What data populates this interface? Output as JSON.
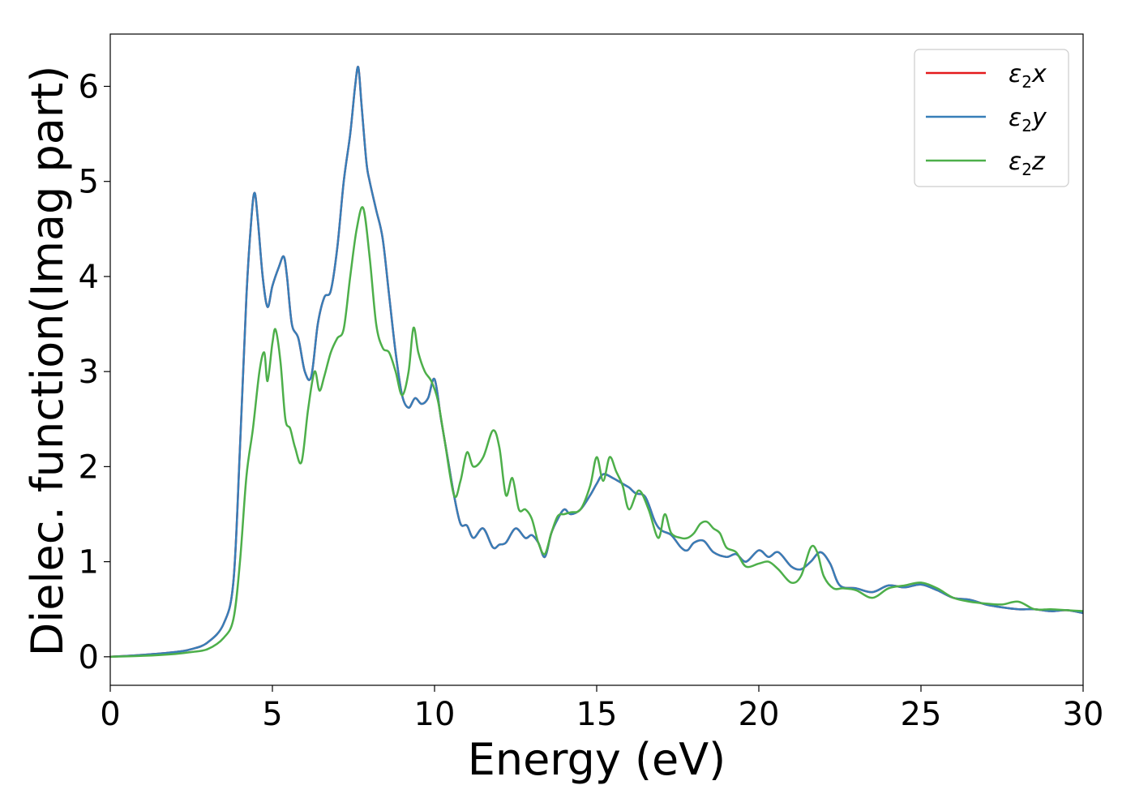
{
  "chart_data": {
    "type": "line",
    "title": "",
    "xlabel": "Energy (eV)",
    "ylabel": "Dielec. function(Imag part)",
    "xlim": [
      0,
      30
    ],
    "ylim": [
      -0.3,
      6.55
    ],
    "xticks": [
      0,
      5,
      10,
      15,
      20,
      25,
      30
    ],
    "yticks": [
      0,
      1,
      2,
      3,
      4,
      5,
      6
    ],
    "grid": false,
    "legend_position": "top-right",
    "series": [
      {
        "name": "ε2x",
        "name_main": "ε",
        "name_sub": "2",
        "name_tail": "x",
        "color": "#e41a1c",
        "x": [
          0,
          1,
          2,
          2.5,
          3,
          3.5,
          3.8,
          4.0,
          4.2,
          4.35,
          4.45,
          4.55,
          4.7,
          4.85,
          5.0,
          5.2,
          5.35,
          5.45,
          5.6,
          5.8,
          6.0,
          6.2,
          6.4,
          6.6,
          6.8,
          7.0,
          7.2,
          7.4,
          7.55,
          7.65,
          7.75,
          7.9,
          8.0,
          8.2,
          8.4,
          8.6,
          8.8,
          9.0,
          9.2,
          9.4,
          9.6,
          9.8,
          10.0,
          10.2,
          10.4,
          10.6,
          10.8,
          11.0,
          11.2,
          11.5,
          11.8,
          12.0,
          12.2,
          12.5,
          12.8,
          13.0,
          13.2,
          13.4,
          13.6,
          13.8,
          14.0,
          14.2,
          14.5,
          14.8,
          15.0,
          15.2,
          15.5,
          15.8,
          16.0,
          16.2,
          16.5,
          16.8,
          17.0,
          17.3,
          17.6,
          17.8,
          18.0,
          18.3,
          18.6,
          19.0,
          19.3,
          19.6,
          20.0,
          20.3,
          20.6,
          21.0,
          21.3,
          21.6,
          21.9,
          22.2,
          22.5,
          23.0,
          23.5,
          24.0,
          24.5,
          25.0,
          25.5,
          26.0,
          26.5,
          27.0,
          27.5,
          28.0,
          28.5,
          29.0,
          29.5,
          30.0
        ],
        "y": [
          0.0,
          0.02,
          0.05,
          0.08,
          0.15,
          0.35,
          0.8,
          2.2,
          3.8,
          4.6,
          4.88,
          4.6,
          4.0,
          3.68,
          3.9,
          4.1,
          4.21,
          4.0,
          3.5,
          3.35,
          3.0,
          2.95,
          3.5,
          3.78,
          3.85,
          4.3,
          5.0,
          5.5,
          6.0,
          6.2,
          5.8,
          5.2,
          5.0,
          4.7,
          4.4,
          3.8,
          3.2,
          2.75,
          2.62,
          2.72,
          2.66,
          2.72,
          2.92,
          2.5,
          2.1,
          1.7,
          1.4,
          1.38,
          1.25,
          1.35,
          1.15,
          1.18,
          1.2,
          1.35,
          1.25,
          1.28,
          1.2,
          1.05,
          1.3,
          1.45,
          1.55,
          1.5,
          1.55,
          1.7,
          1.82,
          1.92,
          1.88,
          1.82,
          1.78,
          1.72,
          1.68,
          1.42,
          1.33,
          1.28,
          1.15,
          1.12,
          1.2,
          1.22,
          1.1,
          1.05,
          1.08,
          1.0,
          1.12,
          1.05,
          1.1,
          0.95,
          0.92,
          1.0,
          1.1,
          0.98,
          0.75,
          0.72,
          0.68,
          0.75,
          0.73,
          0.76,
          0.7,
          0.62,
          0.6,
          0.55,
          0.52,
          0.5,
          0.5,
          0.48,
          0.49,
          0.46
        ]
      },
      {
        "name": "ε2y",
        "name_main": "ε",
        "name_sub": "2",
        "name_tail": "y",
        "color": "#377eb8",
        "x": [
          0,
          1,
          2,
          2.5,
          3,
          3.5,
          3.8,
          4.0,
          4.2,
          4.35,
          4.45,
          4.55,
          4.7,
          4.85,
          5.0,
          5.2,
          5.35,
          5.45,
          5.6,
          5.8,
          6.0,
          6.2,
          6.4,
          6.6,
          6.8,
          7.0,
          7.2,
          7.4,
          7.55,
          7.65,
          7.75,
          7.9,
          8.0,
          8.2,
          8.4,
          8.6,
          8.8,
          9.0,
          9.2,
          9.4,
          9.6,
          9.8,
          10.0,
          10.2,
          10.4,
          10.6,
          10.8,
          11.0,
          11.2,
          11.5,
          11.8,
          12.0,
          12.2,
          12.5,
          12.8,
          13.0,
          13.2,
          13.4,
          13.6,
          13.8,
          14.0,
          14.2,
          14.5,
          14.8,
          15.0,
          15.2,
          15.5,
          15.8,
          16.0,
          16.2,
          16.5,
          16.8,
          17.0,
          17.3,
          17.6,
          17.8,
          18.0,
          18.3,
          18.6,
          19.0,
          19.3,
          19.6,
          20.0,
          20.3,
          20.6,
          21.0,
          21.3,
          21.6,
          21.9,
          22.2,
          22.5,
          23.0,
          23.5,
          24.0,
          24.5,
          25.0,
          25.5,
          26.0,
          26.5,
          27.0,
          27.5,
          28.0,
          28.5,
          29.0,
          29.5,
          30.0
        ],
        "y": [
          0.0,
          0.02,
          0.05,
          0.08,
          0.15,
          0.35,
          0.8,
          2.2,
          3.8,
          4.6,
          4.88,
          4.6,
          4.0,
          3.68,
          3.9,
          4.1,
          4.21,
          4.0,
          3.5,
          3.35,
          3.0,
          2.95,
          3.5,
          3.78,
          3.85,
          4.3,
          5.0,
          5.5,
          6.0,
          6.2,
          5.8,
          5.2,
          5.0,
          4.7,
          4.4,
          3.8,
          3.2,
          2.75,
          2.62,
          2.72,
          2.66,
          2.72,
          2.92,
          2.5,
          2.1,
          1.7,
          1.4,
          1.38,
          1.25,
          1.35,
          1.15,
          1.18,
          1.2,
          1.35,
          1.25,
          1.28,
          1.2,
          1.05,
          1.3,
          1.45,
          1.55,
          1.5,
          1.55,
          1.7,
          1.82,
          1.92,
          1.88,
          1.82,
          1.78,
          1.72,
          1.68,
          1.42,
          1.33,
          1.28,
          1.15,
          1.12,
          1.2,
          1.22,
          1.1,
          1.05,
          1.08,
          1.0,
          1.12,
          1.05,
          1.1,
          0.95,
          0.92,
          1.0,
          1.1,
          0.98,
          0.75,
          0.72,
          0.68,
          0.75,
          0.73,
          0.76,
          0.7,
          0.62,
          0.6,
          0.55,
          0.52,
          0.5,
          0.5,
          0.48,
          0.49,
          0.46
        ]
      },
      {
        "name": "ε2z",
        "name_main": "ε",
        "name_sub": "2",
        "name_tail": "z",
        "color": "#4daf4a",
        "x": [
          0,
          1,
          2,
          2.5,
          3,
          3.5,
          3.8,
          4.0,
          4.2,
          4.4,
          4.6,
          4.75,
          4.85,
          5.0,
          5.1,
          5.25,
          5.4,
          5.55,
          5.7,
          5.9,
          6.1,
          6.3,
          6.45,
          6.6,
          6.8,
          7.0,
          7.2,
          7.4,
          7.6,
          7.8,
          8.0,
          8.2,
          8.4,
          8.6,
          8.8,
          9.0,
          9.2,
          9.35,
          9.5,
          9.7,
          9.9,
          10.1,
          10.3,
          10.6,
          10.8,
          11.0,
          11.2,
          11.5,
          11.8,
          12.0,
          12.2,
          12.4,
          12.6,
          12.8,
          13.0,
          13.2,
          13.4,
          13.6,
          13.8,
          14.0,
          14.2,
          14.5,
          14.8,
          15.0,
          15.2,
          15.4,
          15.6,
          15.8,
          16.0,
          16.3,
          16.6,
          16.9,
          17.1,
          17.3,
          17.6,
          17.8,
          18.0,
          18.2,
          18.4,
          18.6,
          18.8,
          19.0,
          19.3,
          19.6,
          20.0,
          20.3,
          20.6,
          21.0,
          21.3,
          21.6,
          21.8,
          22.0,
          22.3,
          22.6,
          23.0,
          23.5,
          24.0,
          24.5,
          25.0,
          25.5,
          26.0,
          26.5,
          27.0,
          27.5,
          28.0,
          28.5,
          29.0,
          29.5,
          30.0
        ],
        "y": [
          0.0,
          0.01,
          0.03,
          0.05,
          0.08,
          0.2,
          0.4,
          1.0,
          1.9,
          2.4,
          3.0,
          3.2,
          2.9,
          3.3,
          3.44,
          3.1,
          2.5,
          2.4,
          2.2,
          2.05,
          2.6,
          3.0,
          2.8,
          2.95,
          3.2,
          3.35,
          3.45,
          4.0,
          4.5,
          4.72,
          4.2,
          3.5,
          3.25,
          3.2,
          3.0,
          2.75,
          3.0,
          3.46,
          3.2,
          3.0,
          2.9,
          2.7,
          2.3,
          1.7,
          1.85,
          2.15,
          2.0,
          2.1,
          2.38,
          2.2,
          1.7,
          1.88,
          1.55,
          1.55,
          1.45,
          1.2,
          1.08,
          1.3,
          1.48,
          1.5,
          1.52,
          1.55,
          1.8,
          2.1,
          1.85,
          2.1,
          1.95,
          1.8,
          1.55,
          1.75,
          1.55,
          1.25,
          1.5,
          1.3,
          1.25,
          1.25,
          1.3,
          1.4,
          1.42,
          1.35,
          1.3,
          1.15,
          1.1,
          0.95,
          0.98,
          1.0,
          0.92,
          0.78,
          0.85,
          1.15,
          1.1,
          0.85,
          0.72,
          0.72,
          0.7,
          0.62,
          0.72,
          0.75,
          0.78,
          0.72,
          0.62,
          0.58,
          0.56,
          0.55,
          0.58,
          0.5,
          0.5,
          0.49,
          0.48
        ]
      }
    ]
  }
}
